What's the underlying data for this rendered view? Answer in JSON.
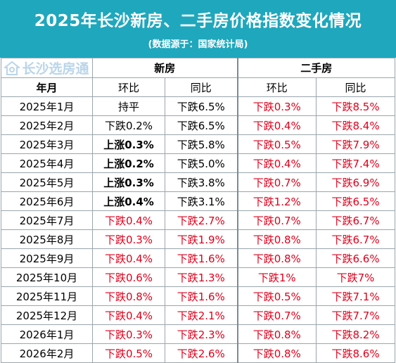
{
  "header": {
    "title": "2025年长沙新房、二手房价格指数变化情况",
    "subtitle": "(数据源于：国家统计局)",
    "background": "#1fa7bd"
  },
  "watermark": {
    "text": "长沙选房通",
    "icon": "house-logo-icon"
  },
  "table": {
    "groups": {
      "new": "新房",
      "second": "二手房"
    },
    "month_header": "年月",
    "col_mom": "环比",
    "col_yoy": "同比",
    "accent_red": "#e0001b",
    "rows": [
      {
        "month": "2025年1月",
        "new_mom": "持平",
        "new_yoy": "下跌6.5%",
        "sec_mom": "下跌0.3%",
        "sec_yoy": "下跌8.5%"
      },
      {
        "month": "2025年2月",
        "new_mom": "下跌0.2%",
        "new_yoy": "下跌6.5%",
        "sec_mom": "下跌0.4%",
        "sec_yoy": "下跌8.4%"
      },
      {
        "month": "2025年3月",
        "new_mom": "上涨0.3%",
        "new_yoy": "下跌5.8%",
        "sec_mom": "下跌0.5%",
        "sec_yoy": "下跌7.9%"
      },
      {
        "month": "2025年4月",
        "new_mom": "上涨0.2%",
        "new_yoy": "下跌5.0%",
        "sec_mom": "下跌0.4%",
        "sec_yoy": "下跌7.4%"
      },
      {
        "month": "2025年5月",
        "new_mom": "上涨0.3%",
        "new_yoy": "下跌3.8%",
        "sec_mom": "下跌0.7%",
        "sec_yoy": "下跌6.9%"
      },
      {
        "month": "2025年6月",
        "new_mom": "上涨0.4%",
        "new_yoy": "下跌3.1%",
        "sec_mom": "下跌1.2%",
        "sec_yoy": "下跌6.5%"
      },
      {
        "month": "2025年7月",
        "new_mom": "下跌0.4%",
        "new_yoy": "下跌2.7%",
        "sec_mom": "下跌0.7%",
        "sec_yoy": "下跌6.7%"
      },
      {
        "month": "2025年8月",
        "new_mom": "下跌0.3%",
        "new_yoy": "下跌1.9%",
        "sec_mom": "下跌0.8%",
        "sec_yoy": "下跌6.7%"
      },
      {
        "month": "2025年9月",
        "new_mom": "下跌0.4%",
        "new_yoy": "下跌1.6%",
        "sec_mom": "下跌0.8%",
        "sec_yoy": "下跌6.6%"
      },
      {
        "month": "2025年10月",
        "new_mom": "下跌0.6%",
        "new_yoy": "下跌1.3%",
        "sec_mom": "下跌1%",
        "sec_yoy": "下跌7%"
      },
      {
        "month": "2025年11月",
        "new_mom": "下跌0.8%",
        "new_yoy": "下跌1.6%",
        "sec_mom": "下跌0.5%",
        "sec_yoy": "下跌7.1%"
      },
      {
        "month": "2025年12月",
        "new_mom": "下跌0.4%",
        "new_yoy": "下跌2.1%",
        "sec_mom": "下跌0.7%",
        "sec_yoy": "下跌7.7%"
      },
      {
        "month": "2026年1月",
        "new_mom": "下跌0.3%",
        "new_yoy": "下跌2.3%",
        "sec_mom": "下跌0.8%",
        "sec_yoy": "下跌8.2%"
      },
      {
        "month": "2026年2月",
        "new_mom": "下跌0.5%",
        "new_yoy": "下跌2.6%",
        "sec_mom": "下跌0.8%",
        "sec_yoy": "下跌8.6%"
      }
    ]
  }
}
